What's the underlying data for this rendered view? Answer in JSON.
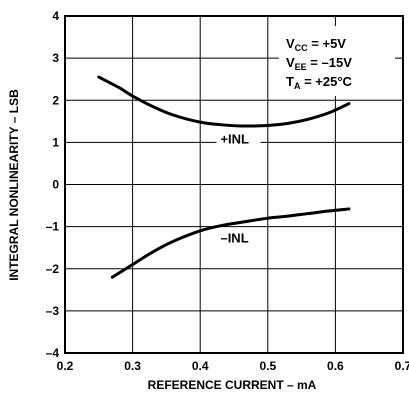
{
  "chart_data": {
    "type": "line",
    "xlabel": "REFERENCE CURRENT – mA",
    "ylabel": "INTEGRAL NONLINEARITY – LSB",
    "xlim": [
      0.2,
      0.7
    ],
    "ylim": [
      -4,
      4
    ],
    "grid": true,
    "x_ticks": [
      "0.2",
      "0.3",
      "0.4",
      "0.5",
      "0.6",
      "0.7"
    ],
    "y_ticks": [
      "4",
      "3",
      "2",
      "1",
      "0",
      "–1",
      "–2",
      "–3",
      "–4"
    ],
    "conditions": [
      {
        "main": "V",
        "sub": "CC",
        "rest": " = +5V"
      },
      {
        "main": "V",
        "sub": "EE",
        "rest": " = –15V"
      },
      {
        "main": "T",
        "sub": "A",
        "rest": " = +25°C"
      }
    ],
    "series": [
      {
        "name": "+INL",
        "x": [
          0.25,
          0.28,
          0.3,
          0.33,
          0.36,
          0.4,
          0.43,
          0.46,
          0.5,
          0.53,
          0.56,
          0.59,
          0.62
        ],
        "values": [
          2.55,
          2.3,
          2.1,
          1.85,
          1.65,
          1.48,
          1.42,
          1.39,
          1.4,
          1.45,
          1.55,
          1.7,
          1.92
        ],
        "label_at": [
          0.43,
          1.0
        ]
      },
      {
        "name": "–INL",
        "x": [
          0.27,
          0.3,
          0.33,
          0.36,
          0.4,
          0.43,
          0.46,
          0.5,
          0.53,
          0.56,
          0.59,
          0.62
        ],
        "values": [
          -2.2,
          -1.9,
          -1.6,
          -1.35,
          -1.1,
          -0.98,
          -0.9,
          -0.8,
          -0.75,
          -0.69,
          -0.63,
          -0.58
        ],
        "label_at": [
          0.43,
          -1.35
        ]
      }
    ]
  }
}
